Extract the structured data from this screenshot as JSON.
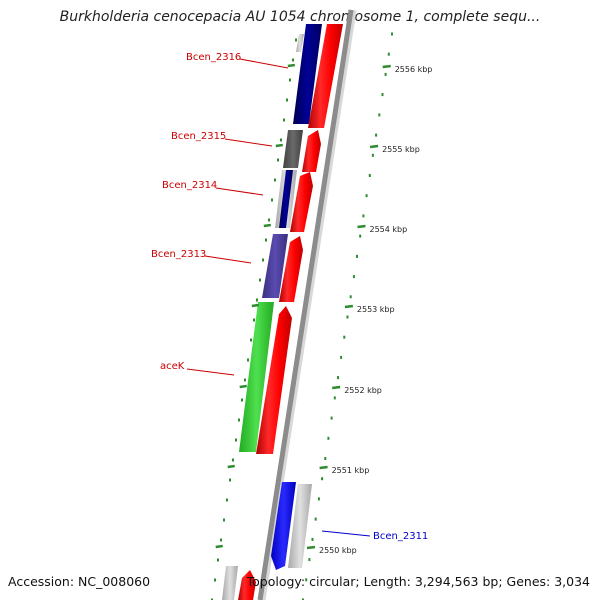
{
  "map": {
    "title": "Burkholderia cenocepacia AU 1054 chromosome 1, complete sequ...",
    "accession": "Accession: NC_008060",
    "topology": "Topology: circular; Length: 3,294,563 bp; Genes: 3,034"
  },
  "colors": {
    "backbone": "#8c8c8c",
    "forward_feature": "#ff0000",
    "ruler": "#2e8b2e",
    "label_reverse": "#cc0000",
    "label_forward": "#0000cc",
    "gray_feature": "#c8c8c8",
    "navy_feature": "#000080",
    "slate_feature": "#4b3c9a",
    "dark_gray_feature": "#555555",
    "green_feature": "#32cd32",
    "blue_feature": "#0000ff"
  },
  "scale": {
    "ticks": [
      {
        "label": "2556 kbp"
      },
      {
        "label": "2555 kbp"
      },
      {
        "label": "2554 kbp"
      },
      {
        "label": "2553 kbp"
      },
      {
        "label": "2552 kbp"
      },
      {
        "label": "2551 kbp"
      },
      {
        "label": "2550 kbp"
      }
    ]
  },
  "gene_labels": [
    {
      "text": "Bcen_2316",
      "color": "#cc0000"
    },
    {
      "text": "Bcen_2315",
      "color": "#cc0000"
    },
    {
      "text": "Bcen_2314",
      "color": "#cc0000"
    },
    {
      "text": "Bcen_2313",
      "color": "#cc0000"
    },
    {
      "text": "aceK",
      "color": "#cc0000"
    },
    {
      "text": "Bcen_2311",
      "color": "#0000cc"
    }
  ]
}
